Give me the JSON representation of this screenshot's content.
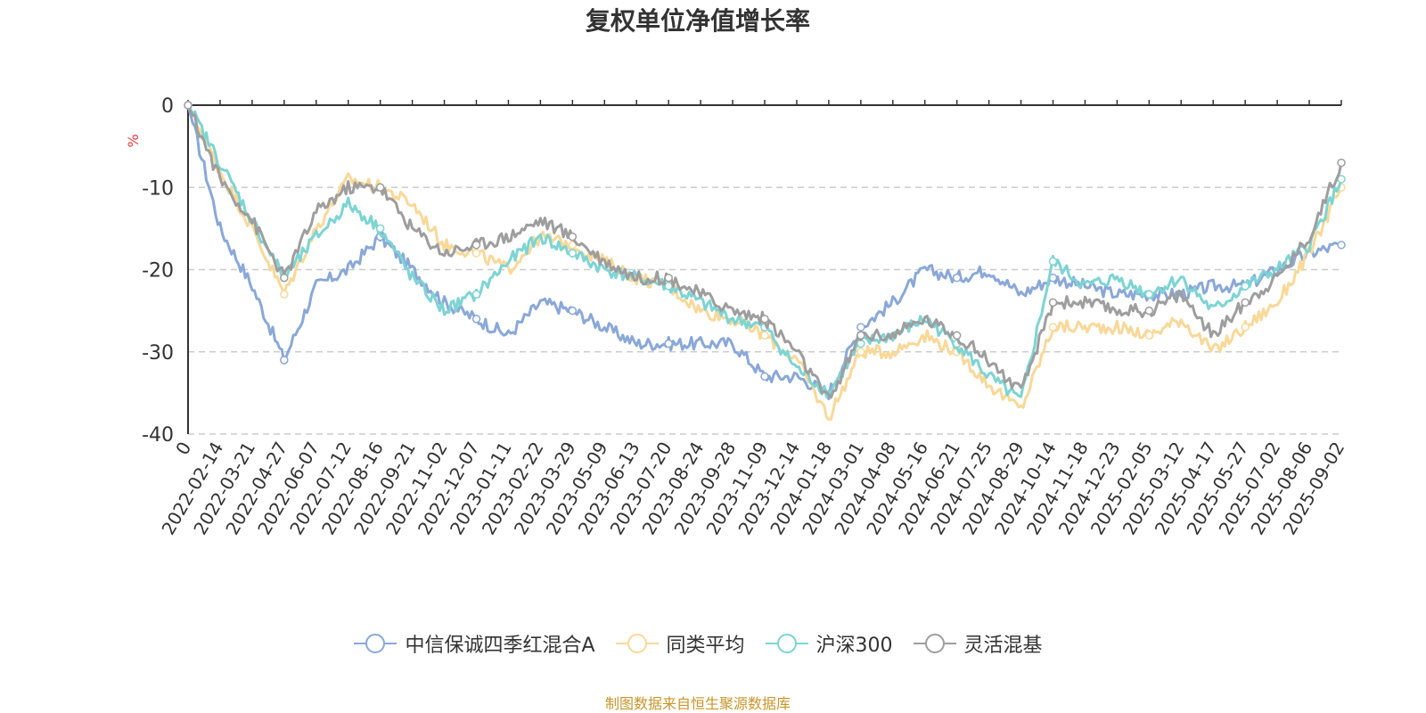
{
  "chart_data": {
    "type": "line",
    "title": "复权单位净值增长率",
    "ylabel": "%",
    "ylim": [
      -40,
      0
    ],
    "yticks": [
      0,
      -10,
      -20,
      -30,
      -40
    ],
    "grid": true,
    "legend_position": "bottom",
    "x_categories": [
      "0",
      "2022-02-14",
      "2022-03-21",
      "2022-04-27",
      "2022-06-07",
      "2022-07-12",
      "2022-08-16",
      "2022-09-21",
      "2022-11-02",
      "2022-12-07",
      "2023-01-11",
      "2023-02-22",
      "2023-03-29",
      "2023-05-09",
      "2023-06-13",
      "2023-07-20",
      "2023-08-24",
      "2023-09-28",
      "2023-11-09",
      "2023-12-14",
      "2024-01-18",
      "2024-03-01",
      "2024-04-08",
      "2024-05-16",
      "2024-06-21",
      "2024-07-25",
      "2024-08-29",
      "2024-10-14",
      "2024-11-18",
      "2024-12-23",
      "2025-02-05",
      "2025-03-12",
      "2025-04-17",
      "2025-05-27",
      "2025-07-02",
      "2025-08-06",
      "2025-09-02"
    ],
    "series": [
      {
        "name": "中信保诚四季红混合A",
        "color": "#8aa8d8",
        "values": [
          0,
          -15,
          -22,
          -31,
          -22,
          -20,
          -16,
          -20,
          -24,
          -26,
          -28,
          -24,
          -25,
          -27,
          -29,
          -29,
          -29,
          -29,
          -33,
          -33,
          -35,
          -27,
          -24,
          -20,
          -21,
          -20,
          -23,
          -21,
          -22,
          -23,
          -23,
          -23,
          -22,
          -22,
          -20,
          -18,
          -17
        ]
      },
      {
        "name": "同类平均",
        "color": "#f9d898",
        "values": [
          0,
          -8,
          -15,
          -23,
          -15,
          -9,
          -10,
          -12,
          -17,
          -18,
          -20,
          -16,
          -17,
          -19,
          -21,
          -22,
          -25,
          -26,
          -28,
          -31,
          -38,
          -30,
          -30,
          -28,
          -30,
          -34,
          -37,
          -27,
          -27,
          -27,
          -28,
          -26,
          -30,
          -27,
          -24,
          -18,
          -10
        ]
      },
      {
        "name": "沪深300",
        "color": "#7dd4d4",
        "values": [
          0,
          -7,
          -14,
          -21,
          -16,
          -12,
          -15,
          -21,
          -25,
          -23,
          -19,
          -16,
          -18,
          -20,
          -21,
          -22,
          -24,
          -26,
          -27,
          -32,
          -35,
          -29,
          -28,
          -26,
          -29,
          -33,
          -36,
          -19,
          -22,
          -21,
          -23,
          -21,
          -25,
          -22,
          -20,
          -17,
          -9
        ]
      },
      {
        "name": "灵活混基",
        "color": "#9e9e9e",
        "values": [
          0,
          -9,
          -14,
          -21,
          -13,
          -10,
          -10,
          -15,
          -18,
          -17,
          -16,
          -14,
          -16,
          -19,
          -21,
          -21,
          -23,
          -25,
          -26,
          -30,
          -36,
          -28,
          -28,
          -26,
          -28,
          -31,
          -35,
          -24,
          -24,
          -25,
          -25,
          -23,
          -28,
          -24,
          -21,
          -16,
          -7
        ]
      }
    ]
  },
  "source_text": "制图数据来自恒生聚源数据库"
}
